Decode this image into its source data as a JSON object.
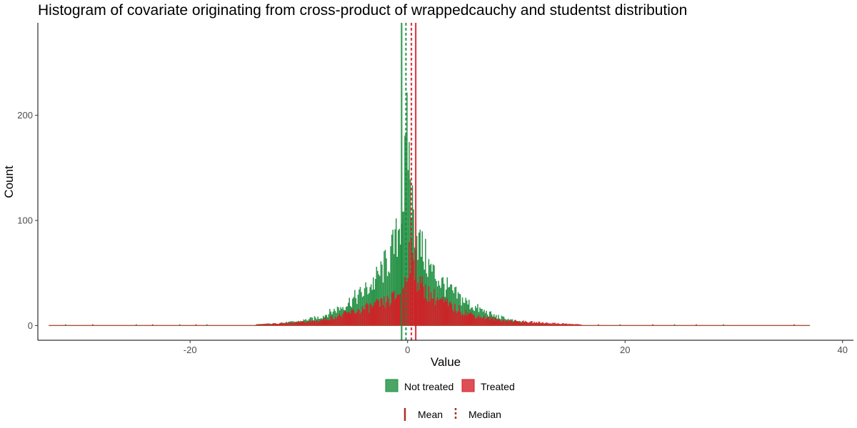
{
  "chart_data": {
    "type": "bar",
    "title": "Histogram of covariate originating from cross-product of wrappedcauchy and studentst distribution",
    "xlabel": "Value",
    "ylabel": "Count",
    "xlim": [
      -34,
      41
    ],
    "ylim": [
      -14,
      288
    ],
    "x_ticks": [
      -20,
      0,
      20,
      40
    ],
    "y_ticks": [
      0,
      100,
      200
    ],
    "x_tick_labels": [
      "-20",
      "0",
      "20",
      "40"
    ],
    "y_tick_labels": [
      "0",
      "100",
      "200"
    ],
    "grid": false,
    "legend_placement": "bottom",
    "bin_range": [
      -33,
      37
    ],
    "bin_width": 0.1,
    "series": [
      {
        "name": "Not treated",
        "color": "#1a8c3c",
        "values": [
          [
            -14,
            1
          ],
          [
            -12,
            2
          ],
          [
            -10,
            4
          ],
          [
            -8,
            8
          ],
          [
            -6,
            18
          ],
          [
            -4,
            32
          ],
          [
            -3,
            42
          ],
          [
            -2,
            58
          ],
          [
            -1.5,
            68
          ],
          [
            -1,
            82
          ],
          [
            -0.5,
            110
          ],
          [
            -0.2,
            150
          ],
          [
            0,
            180
          ],
          [
            0.2,
            150
          ],
          [
            0.5,
            105
          ],
          [
            1,
            80
          ],
          [
            1.5,
            68
          ],
          [
            2,
            55
          ],
          [
            3,
            42
          ],
          [
            4,
            32
          ],
          [
            6,
            18
          ],
          [
            8,
            9
          ],
          [
            10,
            4
          ],
          [
            12,
            2
          ],
          [
            14,
            1
          ]
        ]
      },
      {
        "name": "Treated",
        "color": "#d41f26",
        "values": [
          [
            -14,
            1
          ],
          [
            -12,
            2
          ],
          [
            -10,
            3
          ],
          [
            -8,
            5
          ],
          [
            -6,
            10
          ],
          [
            -4,
            16
          ],
          [
            -2,
            22
          ],
          [
            -1,
            28
          ],
          [
            -0.3,
            40
          ],
          [
            0,
            60
          ],
          [
            0.2,
            70
          ],
          [
            0.5,
            58
          ],
          [
            1,
            40
          ],
          [
            2,
            30
          ],
          [
            3,
            24
          ],
          [
            4,
            18
          ],
          [
            6,
            10
          ],
          [
            8,
            6
          ],
          [
            10,
            4
          ],
          [
            12,
            3
          ],
          [
            14,
            2
          ],
          [
            16,
            1
          ]
        ]
      }
    ],
    "reference_lines": {
      "not_treated_mean": -0.55,
      "not_treated_median": -0.15,
      "treated_mean": 0.75,
      "treated_median": 0.35
    },
    "line_legend": [
      "Mean",
      "Median"
    ]
  }
}
